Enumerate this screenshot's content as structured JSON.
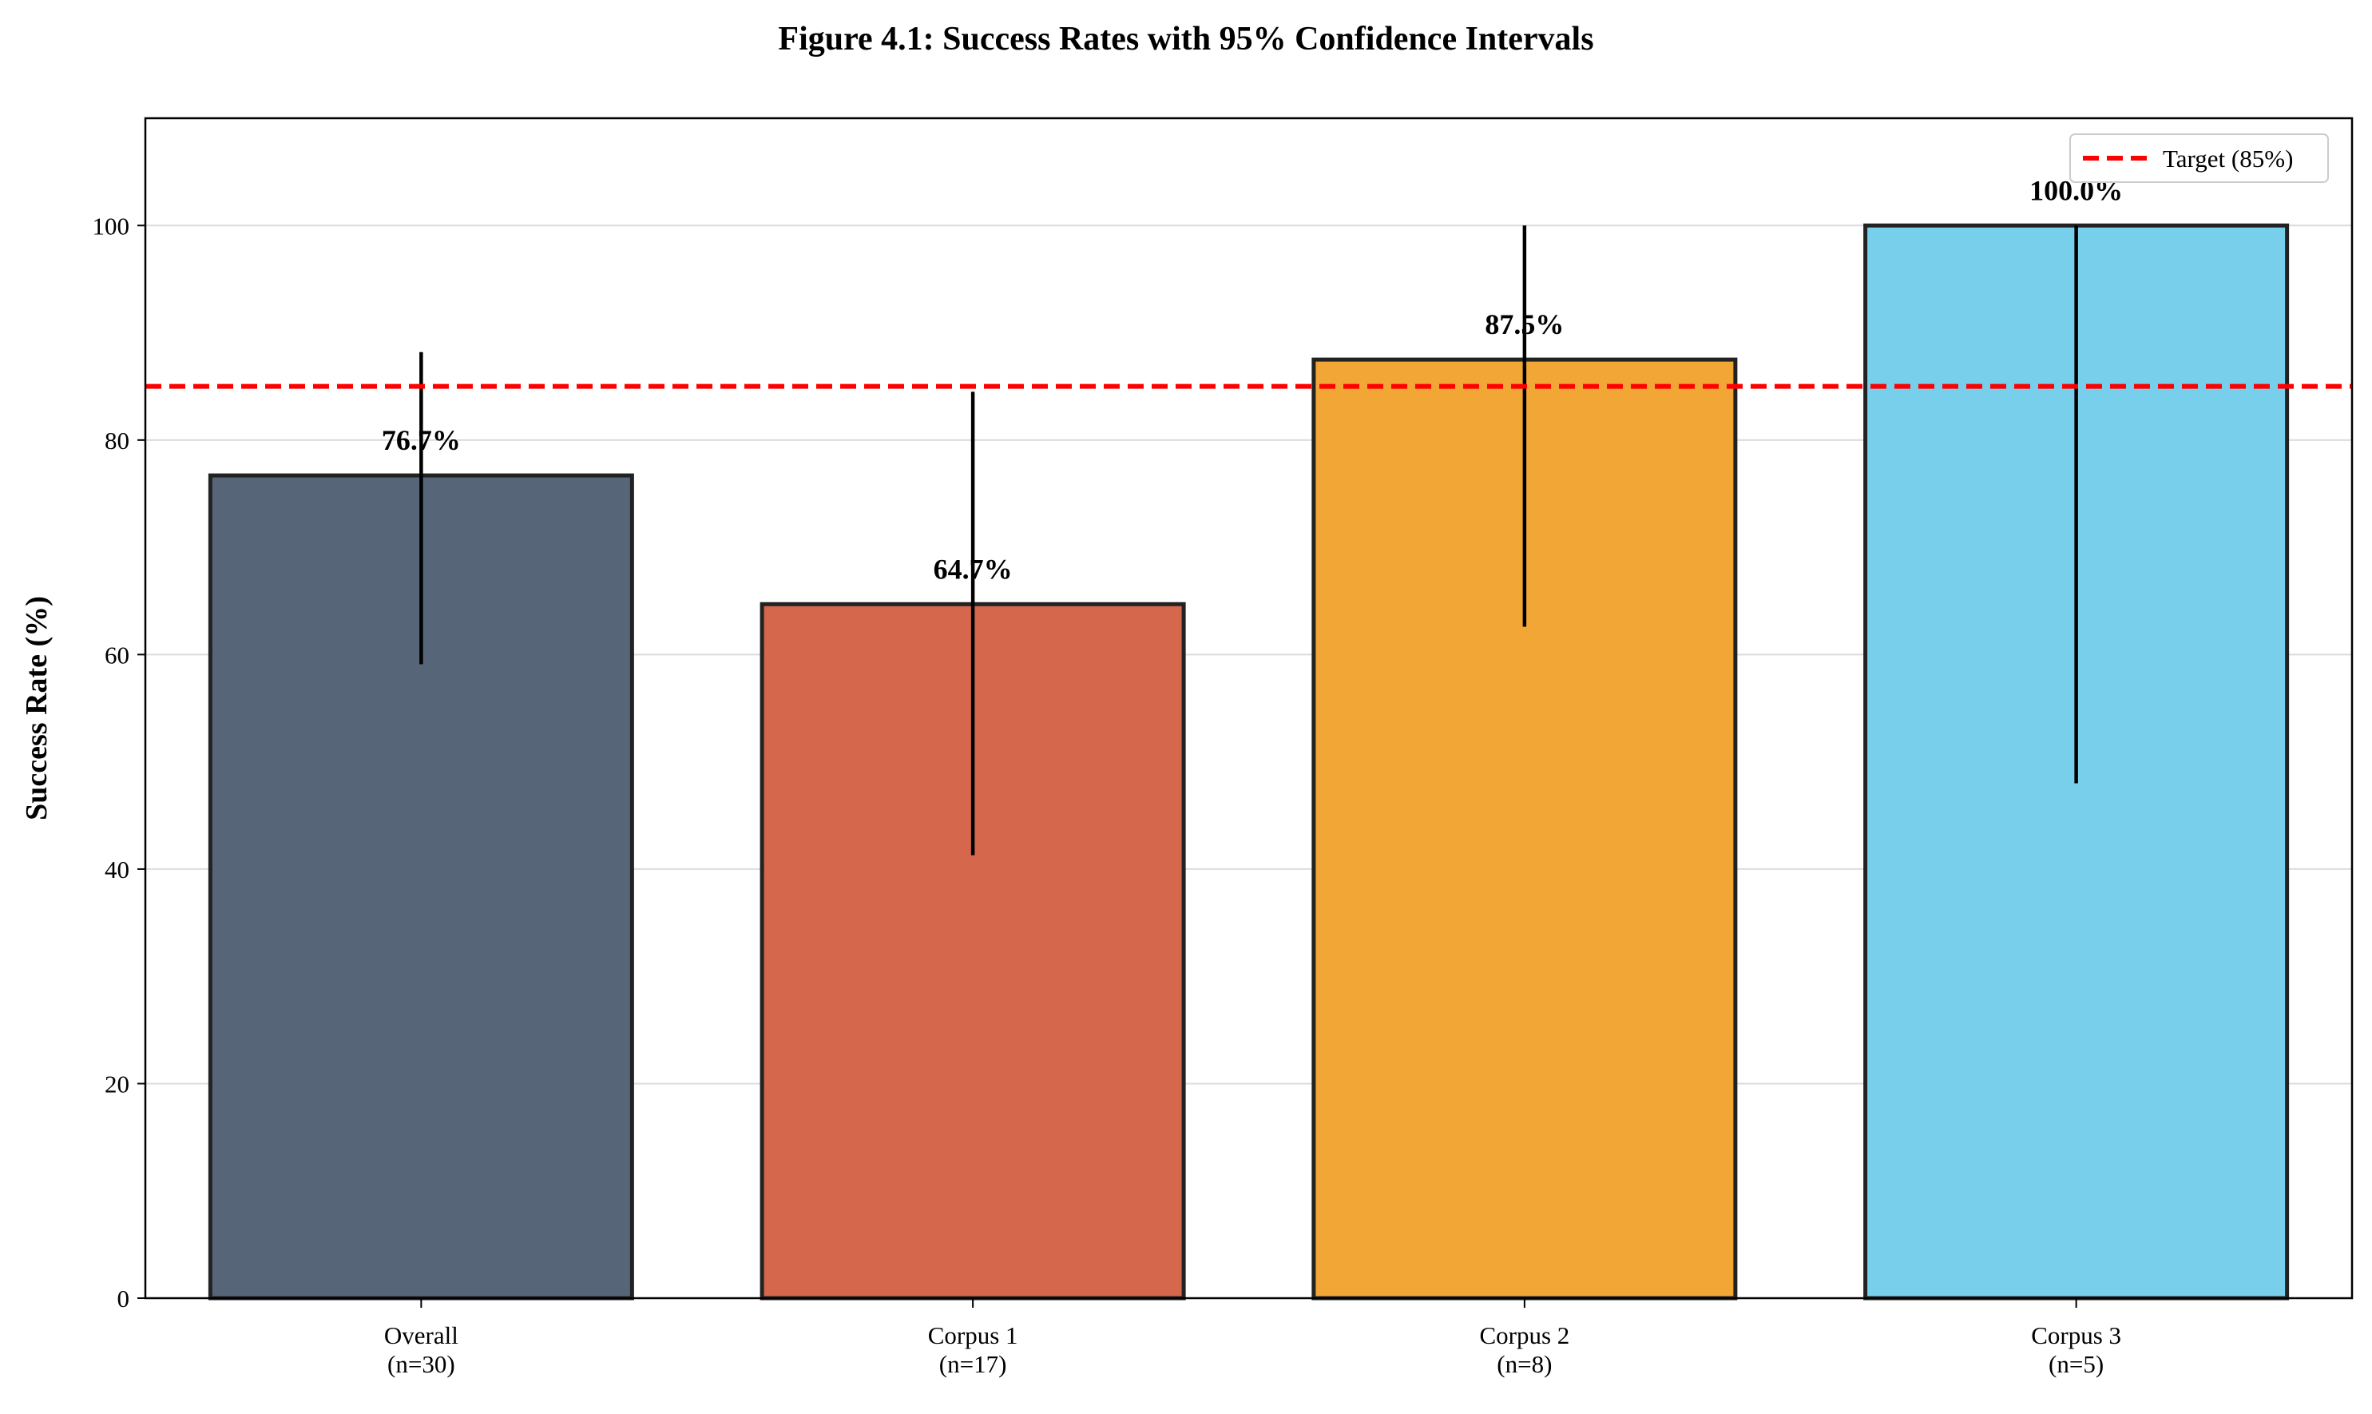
{
  "chart_data": {
    "type": "bar",
    "title": "Figure 4.1: Success Rates with 95% Confidence Intervals",
    "xlabel": "",
    "ylabel": "Success Rate (%)",
    "ylim": [
      0,
      110
    ],
    "yticks": [
      0,
      20,
      40,
      60,
      80,
      100
    ],
    "grid": "y",
    "legend_position": "top-right",
    "categories": [
      {
        "name": "Overall",
        "n": "(n=30)"
      },
      {
        "name": "Corpus 1",
        "n": "(n=17)"
      },
      {
        "name": "Corpus 2",
        "n": "(n=8)"
      },
      {
        "name": "Corpus 3",
        "n": "(n=5)"
      }
    ],
    "values": [
      76.7,
      64.7,
      87.5,
      100.0
    ],
    "value_labels": [
      "76.7%",
      "64.7%",
      "87.5%",
      "100.0%"
    ],
    "ci_lower": [
      59.1,
      41.3,
      62.6,
      48.0
    ],
    "ci_upper": [
      88.2,
      84.5,
      100.0,
      100.0
    ],
    "colors": [
      "#566678",
      "#d4674c",
      "#f2a635",
      "#78cfec"
    ],
    "target": {
      "value": 85,
      "label": "Target (85%)",
      "color": "#ff0000"
    }
  }
}
